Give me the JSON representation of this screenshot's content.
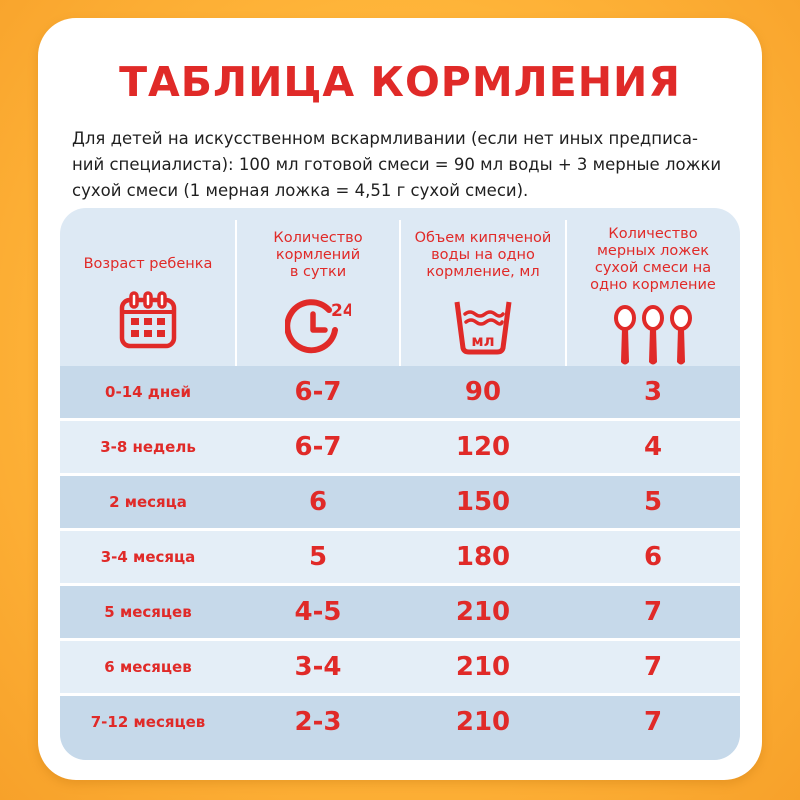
{
  "title": "ТАБЛИЦА КОРМЛЕНИЯ",
  "intro": {
    "line1": "Для детей на искусственном вскармливании (если нет иных предписа-",
    "line2": "ний специалиста): 100 мл готовой смеси = 90 мл воды + 3 мерные ложки",
    "line3": "сухой смеси (1 мерная ложка = 4,51 г сухой смеси)."
  },
  "headers": [
    {
      "lines": [
        "Возраст ребенка"
      ],
      "icon": "calendar-icon"
    },
    {
      "lines": [
        "Количество",
        "кормлений",
        "в сутки"
      ],
      "icon": "clock-24-icon",
      "icon_text": "24"
    },
    {
      "lines": [
        "Объем кипяченой",
        "воды на одно",
        "кормление, мл"
      ],
      "icon": "measuring-cup-icon",
      "icon_text": "мл"
    },
    {
      "lines": [
        "Количество",
        "мерных ложек",
        "сухой смеси на",
        "одно кормление"
      ],
      "icon": "spoons-icon"
    }
  ],
  "rows": [
    {
      "age": "0-14 дней",
      "feedings": "6-7",
      "water": "90",
      "spoons": "3"
    },
    {
      "age": "3-8 недель",
      "feedings": "6-7",
      "water": "120",
      "spoons": "4"
    },
    {
      "age": "2 месяца",
      "feedings": "6",
      "water": "150",
      "spoons": "5"
    },
    {
      "age": "3-4 месяца",
      "feedings": "5",
      "water": "180",
      "spoons": "6"
    },
    {
      "age": "5 месяцев",
      "feedings": "4-5",
      "water": "210",
      "spoons": "7"
    },
    {
      "age": "6 месяцев",
      "feedings": "3-4",
      "water": "210",
      "spoons": "7"
    },
    {
      "age": "7-12 месяцев",
      "feedings": "2-3",
      "water": "210",
      "spoons": "7"
    }
  ],
  "colors": {
    "accent_red": "#e02a28",
    "row_dark": "#c6d9ea",
    "row_light": "#e4eef7",
    "background_orange": "#ffb53a"
  }
}
